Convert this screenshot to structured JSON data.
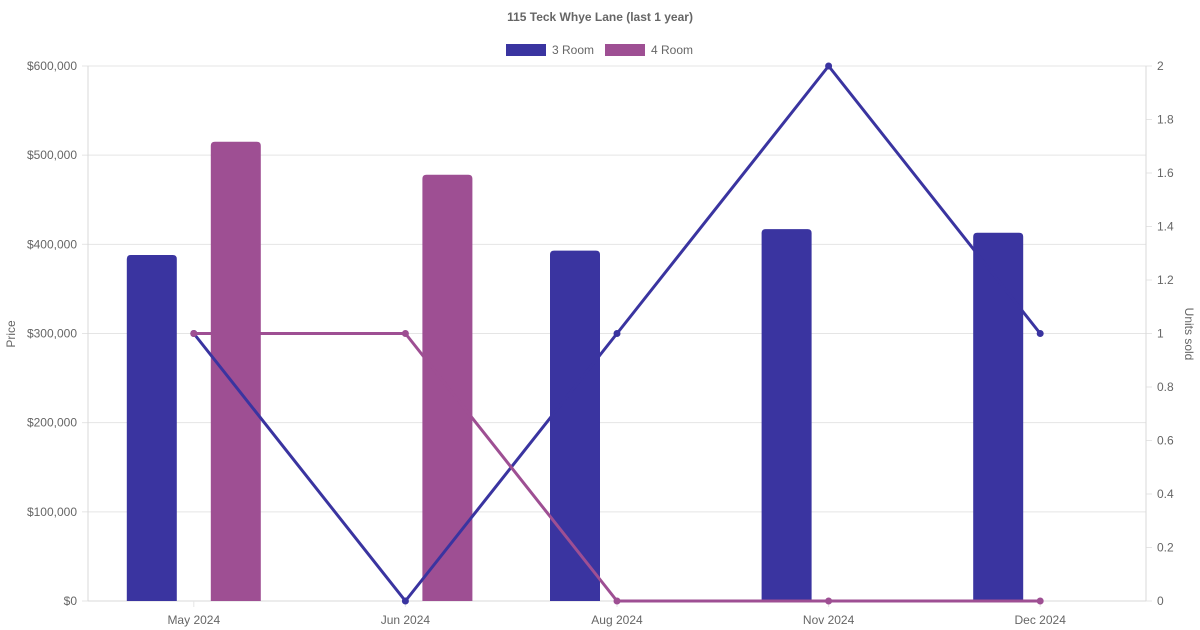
{
  "chart_data": {
    "type": "bar",
    "title": "115 Teck Whye Lane (last 1 year)",
    "categories": [
      "May 2024",
      "Jun 2024",
      "Aug 2024",
      "Nov 2024",
      "Dec 2024"
    ],
    "legend": [
      "3 Room",
      "4 Room"
    ],
    "legend_position": "top",
    "y_left": {
      "label": "Price",
      "range": [
        0,
        600000
      ],
      "ticks": [
        "$0",
        "$100,000",
        "$200,000",
        "$300,000",
        "$400,000",
        "$500,000",
        "$600,000"
      ]
    },
    "y_right": {
      "label": "Units sold",
      "range": [
        0,
        2
      ],
      "ticks": [
        "0",
        "0.2",
        "0.4",
        "0.6",
        "0.8",
        "1",
        "1.2",
        "1.4",
        "1.6",
        "1.8",
        "2"
      ]
    },
    "grid": true,
    "series": [
      {
        "name": "3 Room",
        "type": "bar",
        "axis": "left",
        "color": "#3a34a0",
        "values": [
          388000,
          null,
          393000,
          417000,
          413000
        ]
      },
      {
        "name": "4 Room",
        "type": "bar",
        "axis": "left",
        "color": "#9e4f93",
        "values": [
          515000,
          478000,
          null,
          null,
          null
        ]
      },
      {
        "series_of": "3 Room",
        "type": "line",
        "axis": "right",
        "color": "#3a34a0",
        "values": [
          1,
          0,
          1,
          2,
          1
        ]
      },
      {
        "series_of": "4 Room",
        "type": "line",
        "axis": "right",
        "color": "#9e4f93",
        "values": [
          1,
          1,
          0,
          0,
          0
        ]
      }
    ]
  }
}
